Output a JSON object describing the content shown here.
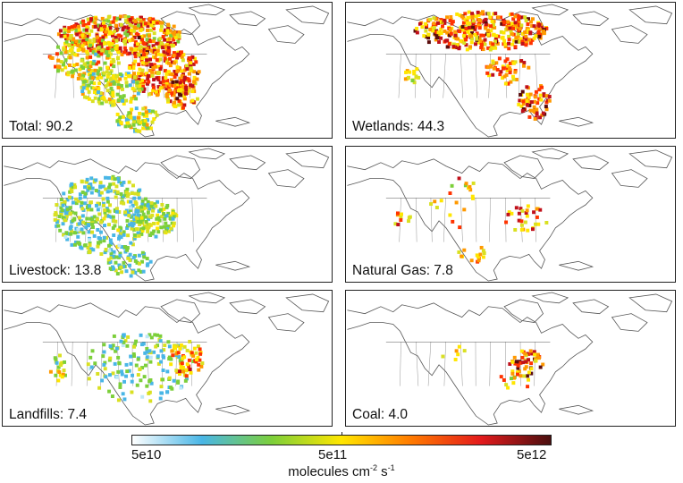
{
  "panels": [
    {
      "id": "total",
      "label": "Total: 90.2"
    },
    {
      "id": "wetlands",
      "label": "Wetlands: 44.3"
    },
    {
      "id": "livestock",
      "label": "Livestock: 13.8"
    },
    {
      "id": "natural-gas",
      "label": "Natural Gas: 7.8"
    },
    {
      "id": "landfills",
      "label": "Landfills: 7.4"
    },
    {
      "id": "coal",
      "label": "Coal: 4.0"
    }
  ],
  "colorbar": {
    "ticks": [
      "5e10",
      "5e11",
      "5e12"
    ],
    "units_prefix": "molecules cm",
    "units_exp1": "-2",
    "units_mid": " s",
    "units_exp2": "-1",
    "colors": [
      "#ffffff",
      "#49b6e6",
      "#7ccf3a",
      "#ffe600",
      "#ff7a00",
      "#e31a1c",
      "#4a0f0f"
    ]
  }
}
